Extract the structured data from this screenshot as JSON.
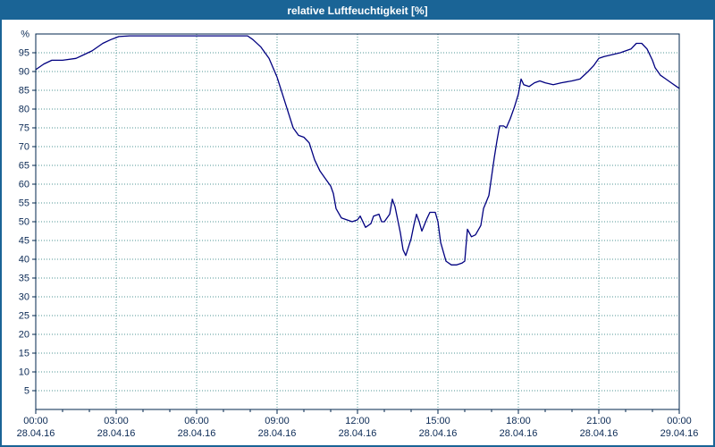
{
  "title": "relative Luftfeuchtigkeit [%]",
  "titlebar_bg": "#1a6496",
  "chart_data": {
    "type": "line",
    "title": "relative Luftfeuchtigkeit [%]",
    "xlabel": "",
    "ylabel": "%",
    "ylim": [
      0,
      100
    ],
    "yticks": {
      "min": 5,
      "max": 95,
      "step": 5
    },
    "x_range_hours": [
      0,
      24
    ],
    "grid": true,
    "legend": "none",
    "colors": {
      "plot_bg": "#ffffff",
      "grid": "#4f9494",
      "axis": "#00264d",
      "text": "#0b2a55"
    },
    "x_ticks": [
      {
        "hour": 0,
        "time": "00:00",
        "date": "28.04.16"
      },
      {
        "hour": 3,
        "time": "03:00",
        "date": "28.04.16"
      },
      {
        "hour": 6,
        "time": "06:00",
        "date": "28.04.16"
      },
      {
        "hour": 9,
        "time": "09:00",
        "date": "28.04.16"
      },
      {
        "hour": 12,
        "time": "12:00",
        "date": "28.04.16"
      },
      {
        "hour": 15,
        "time": "15:00",
        "date": "28.04.16"
      },
      {
        "hour": 18,
        "time": "18:00",
        "date": "28.04.16"
      },
      {
        "hour": 21,
        "time": "21:00",
        "date": "28.04.16"
      },
      {
        "hour": 24,
        "time": "00:00",
        "date": "29.04.16"
      }
    ],
    "series": [
      {
        "name": "relative Luftfeuchtigkeit",
        "color": "#000080",
        "points": [
          [
            0,
            90.5
          ],
          [
            0.3,
            92
          ],
          [
            0.6,
            93
          ],
          [
            1,
            93
          ],
          [
            1.5,
            93.5
          ],
          [
            1.8,
            94.5
          ],
          [
            2.1,
            95.5
          ],
          [
            2.5,
            97.5
          ],
          [
            2.8,
            98.5
          ],
          [
            3.1,
            99.3
          ],
          [
            3.5,
            99.5
          ],
          [
            4.5,
            99.5
          ],
          [
            5.5,
            99.5
          ],
          [
            6.5,
            99.5
          ],
          [
            7.5,
            99.5
          ],
          [
            7.9,
            99.5
          ],
          [
            8.1,
            98.5
          ],
          [
            8.4,
            96.5
          ],
          [
            8.7,
            93.5
          ],
          [
            9,
            88.5
          ],
          [
            9.2,
            84
          ],
          [
            9.4,
            79.5
          ],
          [
            9.6,
            75
          ],
          [
            9.8,
            73
          ],
          [
            10,
            72.5
          ],
          [
            10.2,
            71
          ],
          [
            10.4,
            66.5
          ],
          [
            10.6,
            63.5
          ],
          [
            10.8,
            61.5
          ],
          [
            11,
            59.5
          ],
          [
            11.1,
            57.5
          ],
          [
            11.2,
            53.5
          ],
          [
            11.4,
            51
          ],
          [
            11.6,
            50.5
          ],
          [
            11.8,
            50
          ],
          [
            12,
            50.5
          ],
          [
            12.1,
            51.5
          ],
          [
            12.3,
            48.5
          ],
          [
            12.5,
            49.5
          ],
          [
            12.6,
            51.5
          ],
          [
            12.8,
            52
          ],
          [
            12.9,
            50
          ],
          [
            13,
            50
          ],
          [
            13.2,
            52
          ],
          [
            13.3,
            56
          ],
          [
            13.4,
            54
          ],
          [
            13.6,
            47
          ],
          [
            13.7,
            42.5
          ],
          [
            13.8,
            41
          ],
          [
            14,
            45.5
          ],
          [
            14.1,
            49
          ],
          [
            14.2,
            52
          ],
          [
            14.3,
            50
          ],
          [
            14.4,
            47.5
          ],
          [
            14.6,
            51
          ],
          [
            14.7,
            52.5
          ],
          [
            14.9,
            52.5
          ],
          [
            15,
            50
          ],
          [
            15.1,
            44.5
          ],
          [
            15.3,
            39.5
          ],
          [
            15.5,
            38.5
          ],
          [
            15.7,
            38.5
          ],
          [
            15.9,
            39
          ],
          [
            16,
            39.5
          ],
          [
            16.1,
            48
          ],
          [
            16.25,
            46
          ],
          [
            16.4,
            46.5
          ],
          [
            16.6,
            49
          ],
          [
            16.7,
            53.5
          ],
          [
            16.9,
            57
          ],
          [
            17,
            62
          ],
          [
            17.1,
            67
          ],
          [
            17.2,
            71.5
          ],
          [
            17.3,
            75.5
          ],
          [
            17.45,
            75.5
          ],
          [
            17.55,
            75
          ],
          [
            17.7,
            77.5
          ],
          [
            17.85,
            80.5
          ],
          [
            18,
            84
          ],
          [
            18.1,
            88
          ],
          [
            18.2,
            86.5
          ],
          [
            18.4,
            86
          ],
          [
            18.6,
            87
          ],
          [
            18.8,
            87.5
          ],
          [
            19,
            87
          ],
          [
            19.3,
            86.5
          ],
          [
            19.6,
            87
          ],
          [
            20,
            87.5
          ],
          [
            20.3,
            88
          ],
          [
            20.6,
            90
          ],
          [
            20.8,
            91.5
          ],
          [
            21,
            93.5
          ],
          [
            21.2,
            94
          ],
          [
            21.5,
            94.5
          ],
          [
            21.8,
            95
          ],
          [
            22,
            95.5
          ],
          [
            22.2,
            96
          ],
          [
            22.4,
            97.5
          ],
          [
            22.6,
            97.5
          ],
          [
            22.8,
            96
          ],
          [
            23,
            93
          ],
          [
            23.1,
            91
          ],
          [
            23.3,
            89
          ],
          [
            23.5,
            88
          ],
          [
            23.7,
            87
          ],
          [
            23.9,
            86
          ],
          [
            24,
            85.5
          ]
        ]
      }
    ]
  }
}
